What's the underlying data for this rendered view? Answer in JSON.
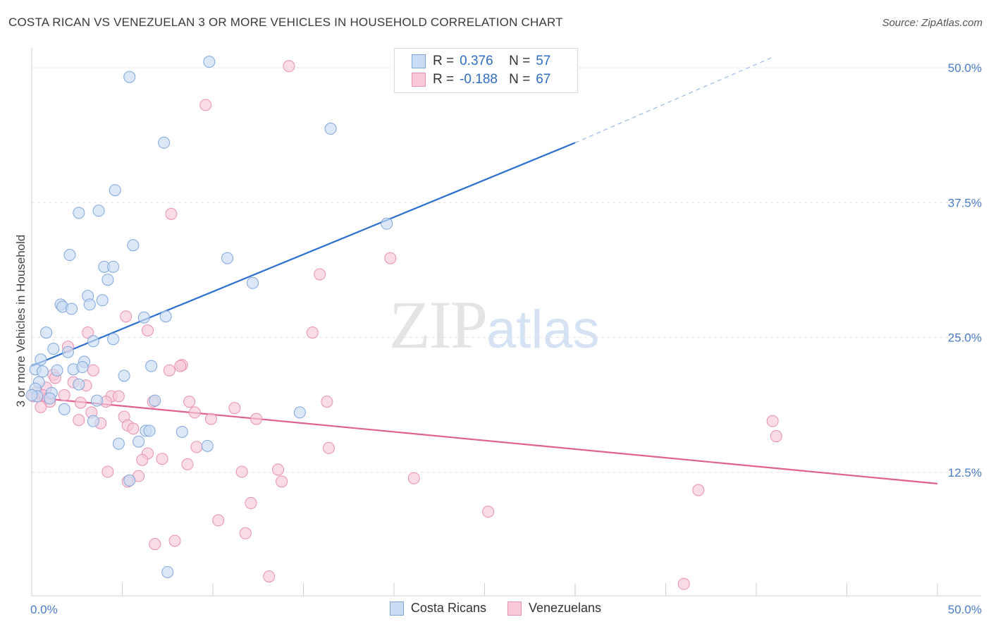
{
  "title": "COSTA RICAN VS VENEZUELAN 3 OR MORE VEHICLES IN HOUSEHOLD CORRELATION CHART",
  "source": "Source: ZipAtlas.com",
  "watermark": {
    "zip": "ZIP",
    "atlas": "atlas"
  },
  "legend_top": {
    "rows": [
      {
        "r_label": "R =",
        "r_value": "0.376",
        "n_label": "N =",
        "n_value": "57"
      },
      {
        "r_label": "R =",
        "r_value": "-0.188",
        "n_label": "N =",
        "n_value": "67"
      }
    ]
  },
  "legend_bottom": {
    "series_a": "Costa Ricans",
    "series_b": "Venezuelans"
  },
  "colors": {
    "costa_fill": "#c9dcf3",
    "costa_stroke": "#7fa6dc",
    "costa_line": "#2a6fcf",
    "ven_fill": "#f8cad9",
    "ven_stroke": "#e98fb0",
    "ven_line": "#e0608f",
    "grid": "#e3e3e3",
    "tick_text": "#4a7cc7"
  },
  "chart_data": {
    "type": "scatter",
    "title": "COSTA RICAN VS VENEZUELAN 3 OR MORE VEHICLES IN HOUSEHOLD CORRELATION CHART",
    "xlabel": "",
    "ylabel": "3 or more Vehicles in Household",
    "xlim": [
      0,
      50
    ],
    "ylim": [
      0,
      50
    ],
    "x_tick_labels": [
      "0.0%",
      "50.0%"
    ],
    "y_ticks": [
      12.5,
      25.0,
      37.5,
      50.0
    ],
    "y_tick_labels": [
      "12.5%",
      "25.0%",
      "37.5%",
      "50.0%"
    ],
    "grid": true,
    "legend_position": "top-center",
    "series": [
      {
        "name": "Costa Ricans",
        "r": 0.376,
        "n": 57,
        "trend": {
          "x0": 0,
          "y0": 21.3,
          "x1": 30,
          "y1": 42.0,
          "dashed_to_x": 41,
          "dashed_to_y": 50.0
        },
        "points": [
          [
            9.8,
            49.5
          ],
          [
            5.4,
            48.1
          ],
          [
            16.5,
            43.3
          ],
          [
            7.3,
            42.0
          ],
          [
            4.6,
            37.6
          ],
          [
            2.6,
            35.5
          ],
          [
            3.7,
            35.7
          ],
          [
            19.6,
            34.5
          ],
          [
            5.6,
            32.5
          ],
          [
            2.1,
            31.6
          ],
          [
            10.8,
            31.3
          ],
          [
            4.0,
            30.5
          ],
          [
            4.5,
            30.5
          ],
          [
            12.2,
            29.0
          ],
          [
            4.2,
            29.3
          ],
          [
            3.1,
            27.8
          ],
          [
            1.6,
            27.0
          ],
          [
            3.2,
            27.0
          ],
          [
            3.9,
            27.4
          ],
          [
            1.7,
            26.8
          ],
          [
            2.2,
            26.6
          ],
          [
            6.2,
            25.8
          ],
          [
            7.4,
            25.9
          ],
          [
            0.8,
            24.4
          ],
          [
            3.4,
            23.6
          ],
          [
            4.5,
            23.8
          ],
          [
            1.2,
            22.9
          ],
          [
            2.0,
            22.6
          ],
          [
            0.5,
            21.9
          ],
          [
            2.9,
            21.7
          ],
          [
            0.2,
            21.0
          ],
          [
            1.4,
            20.9
          ],
          [
            2.3,
            21.0
          ],
          [
            2.8,
            21.2
          ],
          [
            6.6,
            21.3
          ],
          [
            5.1,
            20.4
          ],
          [
            0.6,
            20.8
          ],
          [
            0.4,
            19.8
          ],
          [
            2.6,
            19.6
          ],
          [
            0.2,
            19.2
          ],
          [
            1.1,
            18.8
          ],
          [
            0.3,
            18.5
          ],
          [
            1.0,
            18.3
          ],
          [
            3.6,
            18.1
          ],
          [
            6.8,
            18.1
          ],
          [
            1.8,
            17.3
          ],
          [
            14.8,
            17.0
          ],
          [
            3.4,
            16.2
          ],
          [
            6.3,
            15.3
          ],
          [
            6.5,
            15.3
          ],
          [
            8.3,
            15.2
          ],
          [
            4.8,
            14.1
          ],
          [
            5.9,
            14.3
          ],
          [
            9.7,
            13.9
          ],
          [
            5.4,
            10.7
          ],
          [
            7.5,
            2.2
          ],
          [
            0.0,
            18.6
          ]
        ]
      },
      {
        "name": "Venezuelans",
        "r": -0.188,
        "n": 67,
        "trend": {
          "x0": 0,
          "y0": 18.4,
          "x1": 50,
          "y1": 10.4
        },
        "points": [
          [
            14.2,
            49.1
          ],
          [
            9.6,
            45.5
          ],
          [
            7.7,
            35.4
          ],
          [
            19.8,
            31.3
          ],
          [
            15.9,
            29.8
          ],
          [
            5.2,
            25.9
          ],
          [
            3.1,
            24.4
          ],
          [
            6.4,
            24.6
          ],
          [
            15.5,
            24.4
          ],
          [
            2.0,
            23.1
          ],
          [
            8.3,
            21.4
          ],
          [
            8.2,
            21.3
          ],
          [
            3.4,
            20.9
          ],
          [
            7.6,
            20.9
          ],
          [
            1.2,
            20.5
          ],
          [
            1.3,
            20.2
          ],
          [
            0.8,
            19.3
          ],
          [
            0.3,
            18.9
          ],
          [
            0.6,
            18.6
          ],
          [
            2.3,
            19.8
          ],
          [
            3.0,
            19.5
          ],
          [
            1.8,
            18.6
          ],
          [
            4.4,
            18.5
          ],
          [
            4.8,
            18.5
          ],
          [
            0.9,
            18.3
          ],
          [
            1.0,
            18.0
          ],
          [
            4.1,
            18.0
          ],
          [
            6.7,
            18.0
          ],
          [
            8.7,
            18.0
          ],
          [
            16.3,
            18.0
          ],
          [
            0.5,
            17.5
          ],
          [
            3.3,
            17.0
          ],
          [
            11.2,
            17.4
          ],
          [
            9.0,
            17.0
          ],
          [
            2.7,
            17.9
          ],
          [
            5.1,
            16.6
          ],
          [
            9.9,
            16.4
          ],
          [
            12.4,
            16.4
          ],
          [
            2.6,
            16.3
          ],
          [
            3.8,
            16.0
          ],
          [
            5.3,
            15.8
          ],
          [
            5.6,
            15.5
          ],
          [
            40.9,
            16.2
          ],
          [
            41.1,
            14.8
          ],
          [
            9.1,
            13.8
          ],
          [
            16.4,
            13.7
          ],
          [
            6.4,
            13.2
          ],
          [
            6.1,
            12.6
          ],
          [
            7.2,
            12.7
          ],
          [
            8.6,
            12.2
          ],
          [
            4.2,
            11.5
          ],
          [
            11.6,
            11.5
          ],
          [
            13.6,
            11.7
          ],
          [
            5.9,
            11.1
          ],
          [
            21.1,
            10.9
          ],
          [
            13.8,
            10.6
          ],
          [
            5.3,
            10.6
          ],
          [
            36.8,
            9.8
          ],
          [
            12.1,
            8.6
          ],
          [
            25.2,
            7.8
          ],
          [
            10.3,
            7.0
          ],
          [
            11.8,
            5.8
          ],
          [
            6.8,
            4.8
          ],
          [
            7.9,
            5.1
          ],
          [
            13.1,
            1.8
          ],
          [
            36.0,
            1.1
          ],
          [
            0.1,
            18.5
          ]
        ]
      }
    ]
  }
}
